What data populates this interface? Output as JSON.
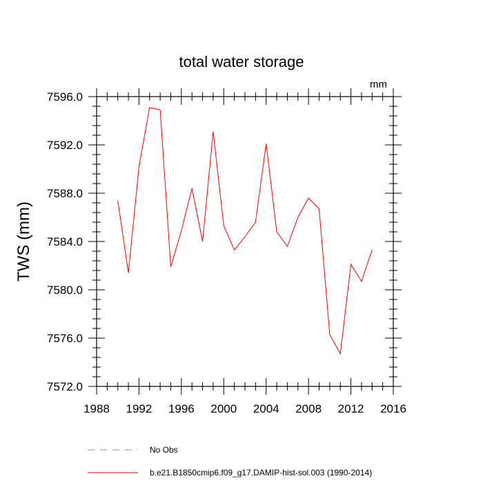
{
  "chart_data": {
    "type": "line",
    "title": "total water storage",
    "units_label": "mm",
    "xlabel": "",
    "ylabel": "TWS  (mm)",
    "xlim": [
      1988,
      2016
    ],
    "ylim": [
      7572.0,
      7596.0
    ],
    "x_ticks": [
      1988,
      1992,
      1996,
      2000,
      2004,
      2008,
      2012,
      2016
    ],
    "x_tick_labels": [
      "1988",
      "1992",
      "1996",
      "2000",
      "2004",
      "2008",
      "2012",
      "2016"
    ],
    "y_ticks": [
      7572.0,
      7576.0,
      7580.0,
      7584.0,
      7588.0,
      7592.0,
      7596.0
    ],
    "y_tick_labels": [
      "7572.0",
      "7576.0",
      "7580.0",
      "7584.0",
      "7588.0",
      "7592.0",
      "7596.0"
    ],
    "grid": false,
    "legend_position": "bottom",
    "series": [
      {
        "name": "b.e21.B1850cmip6.f09_g17.DAMIP-hist-sol.003 (1990-2014)",
        "color": "#ff0000",
        "style": "solid",
        "x": [
          1990,
          1991,
          1992,
          1993,
          1994,
          1995,
          1996,
          1997,
          1998,
          1999,
          2000,
          2001,
          2002,
          2003,
          2004,
          2005,
          2006,
          2007,
          2008,
          2009,
          2010,
          2011,
          2012,
          2013,
          2014
        ],
        "y": [
          7587.4,
          7581.4,
          7590.2,
          7595.1,
          7594.9,
          7581.9,
          7584.9,
          7588.4,
          7584.0,
          7593.1,
          7585.3,
          7583.3,
          7584.4,
          7585.6,
          7592.1,
          7584.8,
          7583.6,
          7586.0,
          7587.6,
          7586.7,
          7576.3,
          7574.7,
          7582.1,
          7580.7,
          7583.3
        ]
      }
    ],
    "legend": [
      {
        "label": "No Obs",
        "color": "#8080ff",
        "style": "dashed"
      },
      {
        "label": "b.e21.B1850cmip6.f09_g17.DAMIP-hist-sol.003 (1990-2014)",
        "color": "#ff0000",
        "style": "solid"
      }
    ]
  }
}
